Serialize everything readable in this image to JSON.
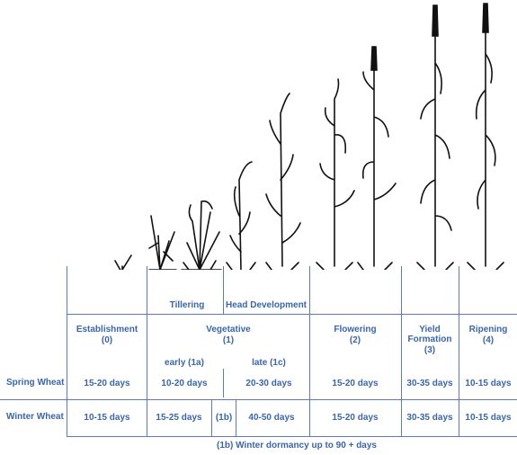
{
  "stage_labels": {
    "tillering": "Tillering",
    "head_development": "Head Development"
  },
  "stages": [
    {
      "name": "Establishment",
      "code": "(0)"
    },
    {
      "name": "Vegetative",
      "code": "(1)"
    },
    {
      "name": "Flowering",
      "code": "(2)"
    },
    {
      "name": "Yield Formation",
      "code": "(3)"
    },
    {
      "name": "Ripening",
      "code": "(4)"
    }
  ],
  "vegetative_sub": {
    "early": "early (1a)",
    "late": "late (1c)",
    "dormancy": "(1b)"
  },
  "rows": [
    {
      "label": "Spring Wheat",
      "establishment": "15-20 days",
      "veg_early": "10-20 days",
      "veg_late": "20-30 days",
      "flowering": "15-20 days",
      "yield": "30-35 days",
      "ripening": "10-15 days"
    },
    {
      "label": "Winter Wheat",
      "establishment": "10-15 days",
      "veg_early": "15-25 days",
      "veg_dormancy": "(1b)",
      "veg_late": "40-50 days",
      "flowering": "15-20 days",
      "yield": "30-35 days",
      "ripening": "10-15 days"
    }
  ],
  "footnote": "(1b) Winter dormancy up to 90 + days",
  "colors": {
    "text": "#3a66a8",
    "rule": "#5a7bb4",
    "plant": "#111111"
  }
}
